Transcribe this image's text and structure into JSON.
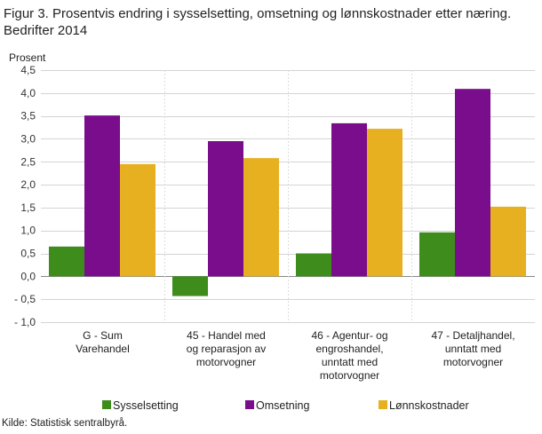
{
  "title": "Figur 3. Prosentvis endring i sysselsetting, omsetning og lønnskostnader etter næring. Bedrifter 2014",
  "source": "Kilde: Statistisk sentralbyrå.",
  "chart_data": {
    "type": "bar",
    "title": "Figur 3. Prosentvis endring i sysselsetting, omsetning og lønnskostnader etter næring. Bedrifter 2014",
    "ylabel": "Prosent",
    "xlabel": "",
    "ylim": [
      -1.0,
      4.5
    ],
    "yticks": [
      4.5,
      4.0,
      3.5,
      3.0,
      2.5,
      2.0,
      1.5,
      1.0,
      0.5,
      0.0,
      -0.5,
      -1.0
    ],
    "ytick_labels": [
      "4,5",
      "4,0",
      "3,5",
      "3,0",
      "2,5",
      "2,0",
      "1,5",
      "1,0",
      "0,5",
      "0,0",
      "- 0,5",
      "- 1,0"
    ],
    "categories": [
      [
        "G - Sum",
        "Varehandel"
      ],
      [
        "45 - Handel med",
        "og reparasjon av",
        "motorvogner"
      ],
      [
        "46 - Agentur- og",
        "engroshandel,",
        "unntatt med",
        "motorvogner"
      ],
      [
        "47 - Detaljhandel,",
        "unntatt med",
        "motorvogner"
      ]
    ],
    "series": [
      {
        "name": "Sysselsetting",
        "color": "#3d8c1c",
        "values": [
          0.65,
          -0.43,
          0.5,
          0.96
        ]
      },
      {
        "name": "Omsetning",
        "color": "#7a0d8c",
        "values": [
          3.51,
          2.95,
          3.34,
          4.09
        ]
      },
      {
        "name": "Lønnskostnader",
        "color": "#e6b020",
        "values": [
          2.45,
          2.58,
          3.22,
          1.52
        ]
      }
    ],
    "grid": {
      "horizontal": true,
      "vertical_separators": true
    },
    "legend_position": "bottom"
  }
}
